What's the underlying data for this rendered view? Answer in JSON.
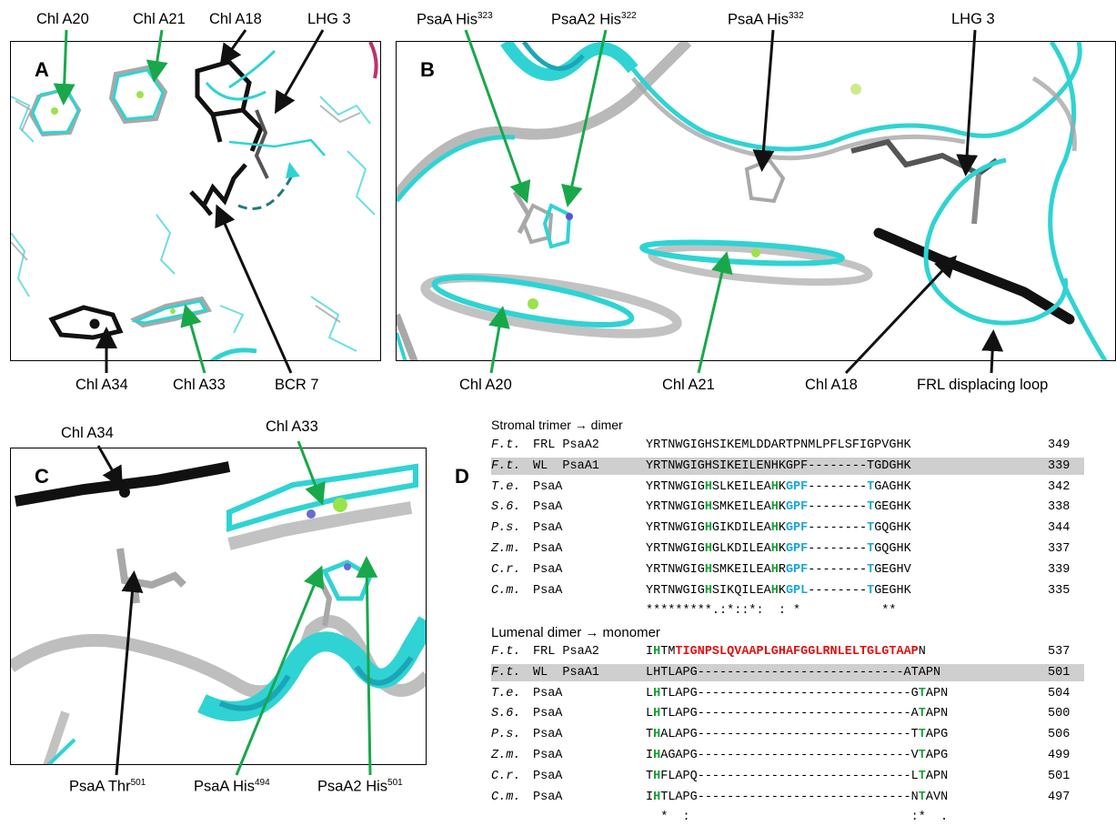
{
  "panelA": {
    "letter": "A",
    "labels": [
      "Chl A20",
      "Chl A21",
      "Chl A18",
      "LHG 3",
      "Chl A34",
      "Chl A33",
      "BCR 7"
    ]
  },
  "panelB": {
    "letter": "B",
    "labels": {
      "his323": {
        "base": "PsaA His",
        "sup": "323"
      },
      "his322": {
        "base": "PsaA2 His",
        "sup": "322"
      },
      "his332": {
        "base": "PsaA His",
        "sup": "332"
      },
      "lhg3": "LHG 3",
      "chlA20": "Chl A20",
      "chlA21": "Chl A21",
      "chlA18": "Chl A18",
      "frl_loop": "FRL displacing loop"
    }
  },
  "panelC": {
    "letter": "C",
    "labels": {
      "chlA34": "Chl A34",
      "chlA33": "Chl A33",
      "thr501": {
        "base": "PsaA Thr",
        "sup": "501"
      },
      "his494": {
        "base": "PsaA His",
        "sup": "494"
      },
      "his501": {
        "base": "PsaA2 His",
        "sup": "501"
      }
    }
  },
  "panelD": {
    "letter": "D",
    "stromal": {
      "title": "Stromal trimer → dimer",
      "rows": [
        {
          "sp": "F.t.",
          "name": "FRL PsaA2",
          "seq": [
            [
              "",
              "YRTNWGIGHSIKEMLDDARTPNMLPFLSFIGPVGHK"
            ]
          ],
          "num": "349",
          "hl": false
        },
        {
          "sp": "F.t.",
          "name": "WL  PsaA1",
          "seq": [
            [
              "",
              "YRTNWGIGHSIKEILENHKGPF--------TGDGHK"
            ]
          ],
          "num": "339",
          "hl": true
        },
        {
          "sp": "T.e.",
          "name": "PsaA",
          "seq": [
            [
              "",
              "YRTNWGIG"
            ],
            [
              "g",
              "H"
            ],
            [
              "",
              "SLKEILEA"
            ],
            [
              "g",
              "H"
            ],
            [
              "",
              "K"
            ],
            [
              "b",
              "GPF"
            ],
            [
              "",
              "--------"
            ],
            [
              "b",
              "T"
            ],
            [
              "",
              "GAGHK"
            ]
          ],
          "num": "342",
          "hl": false
        },
        {
          "sp": "S.6.",
          "name": "PsaA",
          "seq": [
            [
              "",
              "YRTNWGIG"
            ],
            [
              "g",
              "H"
            ],
            [
              "",
              "SMKEILEA"
            ],
            [
              "g",
              "H"
            ],
            [
              "",
              "K"
            ],
            [
              "b",
              "GPF"
            ],
            [
              "",
              "--------"
            ],
            [
              "b",
              "T"
            ],
            [
              "",
              "GEGHK"
            ]
          ],
          "num": "338",
          "hl": false
        },
        {
          "sp": "P.s.",
          "name": "PsaA",
          "seq": [
            [
              "",
              "YRTNWGIG"
            ],
            [
              "g",
              "H"
            ],
            [
              "",
              "GIKDILEA"
            ],
            [
              "g",
              "H"
            ],
            [
              "",
              "K"
            ],
            [
              "b",
              "GPF"
            ],
            [
              "",
              "--------"
            ],
            [
              "b",
              "T"
            ],
            [
              "",
              "GQGHK"
            ]
          ],
          "num": "344",
          "hl": false
        },
        {
          "sp": "Z.m.",
          "name": "PsaA",
          "seq": [
            [
              "",
              "YRTNWGIG"
            ],
            [
              "g",
              "H"
            ],
            [
              "",
              "GLKDILEA"
            ],
            [
              "g",
              "H"
            ],
            [
              "",
              "K"
            ],
            [
              "b",
              "GPF"
            ],
            [
              "",
              "--------"
            ],
            [
              "b",
              "T"
            ],
            [
              "",
              "GQGHK"
            ]
          ],
          "num": "337",
          "hl": false
        },
        {
          "sp": "C.r.",
          "name": "PsaA",
          "seq": [
            [
              "",
              "YRTNWGIG"
            ],
            [
              "g",
              "H"
            ],
            [
              "",
              "SMKEILEA"
            ],
            [
              "g",
              "H"
            ],
            [
              "",
              "R"
            ],
            [
              "b",
              "GPF"
            ],
            [
              "",
              "--------"
            ],
            [
              "b",
              "T"
            ],
            [
              "",
              "GEGHV"
            ]
          ],
          "num": "339",
          "hl": false
        },
        {
          "sp": "C.m.",
          "name": "PsaA",
          "seq": [
            [
              "",
              "YRTNWGIG"
            ],
            [
              "g",
              "H"
            ],
            [
              "",
              "SIKQILEA"
            ],
            [
              "g",
              "H"
            ],
            [
              "",
              "K"
            ],
            [
              "b",
              "GPL"
            ],
            [
              "",
              "--------"
            ],
            [
              "b",
              "T"
            ],
            [
              "",
              "GEGHK"
            ]
          ],
          "num": "335",
          "hl": false
        }
      ],
      "consensus": "*********.:*::*:  : *           **"
    },
    "lumenal": {
      "title": "Lumenal dimer → monomer",
      "rows": [
        {
          "sp": "F.t.",
          "name": "FRL PsaA2",
          "seq": [
            [
              "",
              "I"
            ],
            [
              "g",
              "H"
            ],
            [
              "",
              "TM"
            ],
            [
              "r",
              "TIGNPSLQVAAPLGHAFGGLRNLELTGLGTAAP"
            ],
            [
              "",
              "N"
            ]
          ],
          "num": "537",
          "hl": false
        },
        {
          "sp": "F.t.",
          "name": "WL  PsaA1",
          "seq": [
            [
              "",
              "LHTLAPG----------------------------ATAPN"
            ]
          ],
          "num": "501",
          "hl": true
        },
        {
          "sp": "T.e.",
          "name": "PsaA",
          "seq": [
            [
              "",
              "L"
            ],
            [
              "g",
              "H"
            ],
            [
              "",
              "TLAPG-----------------------------G"
            ],
            [
              "g",
              "T"
            ],
            [
              "",
              "APN"
            ]
          ],
          "num": "504",
          "hl": false
        },
        {
          "sp": "S.6.",
          "name": "PsaA",
          "seq": [
            [
              "",
              "L"
            ],
            [
              "g",
              "H"
            ],
            [
              "",
              "TLAPG-----------------------------A"
            ],
            [
              "g",
              "T"
            ],
            [
              "",
              "APN"
            ]
          ],
          "num": "500",
          "hl": false
        },
        {
          "sp": "P.s.",
          "name": "PsaA",
          "seq": [
            [
              "",
              "T"
            ],
            [
              "g",
              "H"
            ],
            [
              "",
              "ALAPG-----------------------------T"
            ],
            [
              "g",
              "T"
            ],
            [
              "",
              "APG"
            ]
          ],
          "num": "506",
          "hl": false
        },
        {
          "sp": "Z.m.",
          "name": "PsaA",
          "seq": [
            [
              "",
              "I"
            ],
            [
              "g",
              "H"
            ],
            [
              "",
              "AGAPG-----------------------------V"
            ],
            [
              "g",
              "T"
            ],
            [
              "",
              "APG"
            ]
          ],
          "num": "499",
          "hl": false
        },
        {
          "sp": "C.r.",
          "name": "PsaA",
          "seq": [
            [
              "",
              "T"
            ],
            [
              "g",
              "H"
            ],
            [
              "",
              "FLAPQ-----------------------------L"
            ],
            [
              "g",
              "T"
            ],
            [
              "",
              "APN"
            ]
          ],
          "num": "501",
          "hl": false
        },
        {
          "sp": "C.m.",
          "name": "PsaA",
          "seq": [
            [
              "",
              "I"
            ],
            [
              "g",
              "H"
            ],
            [
              "",
              "TLAPG-----------------------------N"
            ],
            [
              "g",
              "T"
            ],
            [
              "",
              "AVN"
            ]
          ],
          "num": "497",
          "hl": false
        }
      ],
      "consensus": "  *  :                              :*  ."
    }
  },
  "colors": {
    "cyan": "#2fd3d3",
    "grey": "#a8a8a8",
    "black": "#111111",
    "green_arrow": "#18a84a",
    "his_green": "#15a035",
    "conserved_blue": "#1aa6d6",
    "insert_red": "#e01010",
    "highlight_row": "#cfcfcf"
  }
}
